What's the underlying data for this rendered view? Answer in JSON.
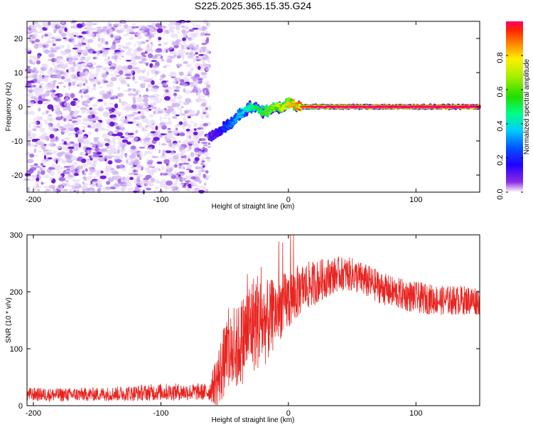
{
  "title": "S225.2025.365.15.35.G24",
  "chart_data": [
    {
      "type": "heatmap",
      "name": "spectrogram",
      "xlabel": "Height of straight line (km)",
      "ylabel": "Frequency (Hz)",
      "xlim": [
        -205,
        150
      ],
      "ylim": [
        -25,
        25
      ],
      "x_ticks": [
        -200,
        -100,
        0,
        100
      ],
      "y_ticks": [
        -20,
        -10,
        0,
        10,
        20
      ],
      "colorbar": {
        "label": "Normalized spectral amplitude",
        "range": [
          0,
          1
        ],
        "ticks": [
          0.0,
          0.2,
          0.4,
          0.6,
          0.8
        ]
      },
      "noise_region": {
        "x_range": [
          -205,
          -62
        ],
        "freq_range": [
          -25,
          25
        ],
        "amplitude": "low (0.0-0.2)"
      },
      "signal_track": {
        "x": [
          -62,
          -55,
          -50,
          -45,
          -40,
          -35,
          -30,
          -25,
          -20,
          -15,
          -10,
          -5,
          0,
          5,
          10,
          20,
          40,
          60,
          80,
          100,
          120,
          150
        ],
        "freq": [
          -9,
          -7.5,
          -6,
          -5,
          -3,
          -1.5,
          0,
          -0.5,
          -1.5,
          -1,
          0,
          -0.5,
          1.5,
          0.5,
          0,
          0,
          0,
          0,
          0,
          0,
          0,
          0
        ],
        "amplitude": [
          0.1,
          0.12,
          0.2,
          0.25,
          0.3,
          0.35,
          0.4,
          0.45,
          0.5,
          0.55,
          0.6,
          0.65,
          0.7,
          0.75,
          0.8,
          0.85,
          0.9,
          0.92,
          0.94,
          0.95,
          0.96,
          0.97
        ]
      }
    },
    {
      "type": "line",
      "name": "snr",
      "xlabel": "Height of straight line (km)",
      "ylabel": "SNR (10 * v/v)",
      "xlim": [
        -205,
        150
      ],
      "ylim": [
        0,
        300
      ],
      "x_ticks": [
        -200,
        -100,
        0,
        100
      ],
      "y_ticks": [
        0,
        100,
        200,
        300
      ],
      "color": "#e8231f",
      "series": [
        {
          "name": "SNR",
          "x": [
            -205,
            -180,
            -150,
            -120,
            -100,
            -80,
            -62,
            -55,
            -50,
            -45,
            -40,
            -35,
            -30,
            -25,
            -20,
            -15,
            -10,
            -5,
            0,
            5,
            10,
            20,
            30,
            40,
            50,
            60,
            80,
            100,
            120,
            150
          ],
          "mean": [
            20,
            19,
            20,
            22,
            24,
            24,
            24,
            50,
            80,
            90,
            100,
            120,
            140,
            150,
            145,
            150,
            165,
            175,
            185,
            195,
            205,
            215,
            225,
            232,
            230,
            220,
            200,
            190,
            185,
            185
          ],
          "spread": [
            12,
            12,
            12,
            14,
            15,
            15,
            15,
            55,
            65,
            70,
            75,
            80,
            85,
            90,
            80,
            70,
            60,
            55,
            55,
            50,
            45,
            40,
            35,
            30,
            30,
            30,
            28,
            28,
            26,
            26
          ]
        }
      ]
    }
  ]
}
